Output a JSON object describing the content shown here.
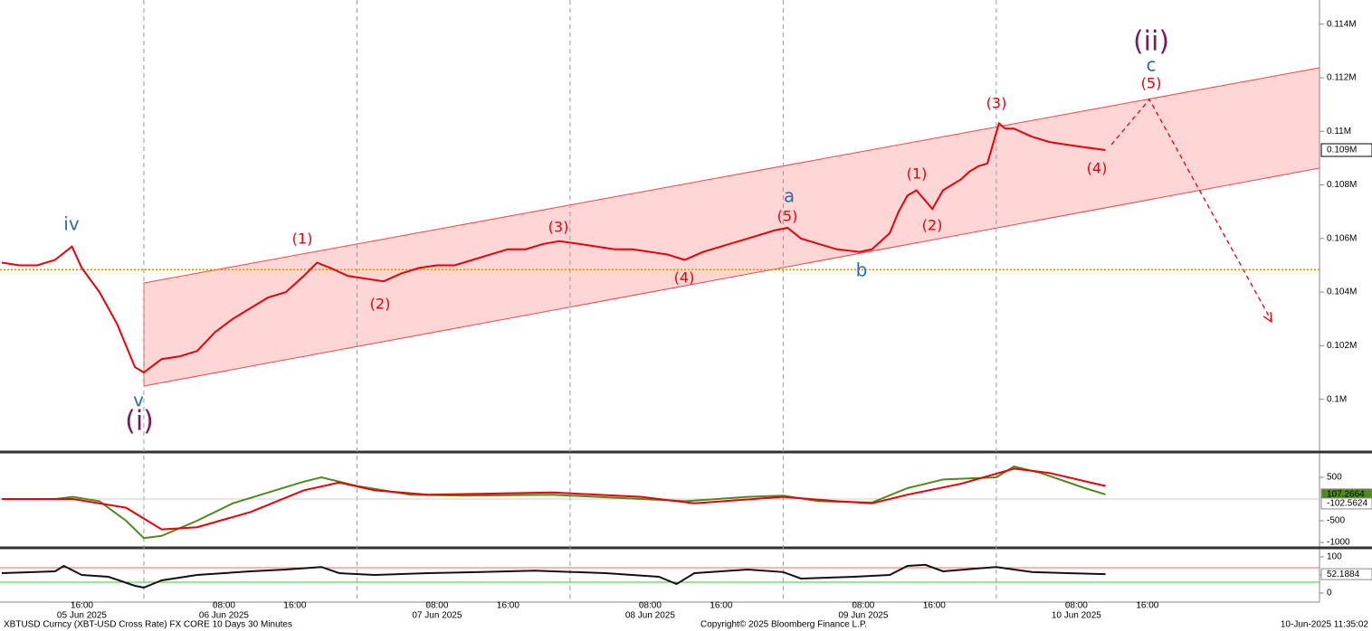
{
  "chart_data": [
    {
      "type": "line",
      "color": "#e8000b",
      "x": [
        8,
        10,
        12,
        14,
        15.9,
        17,
        19,
        21,
        23,
        24,
        26,
        28,
        30,
        32,
        34,
        36,
        38,
        40,
        42,
        43.5,
        45,
        47,
        49,
        51,
        53,
        55,
        57,
        59,
        61,
        63,
        65,
        67,
        69,
        70.8,
        73,
        75,
        77,
        79,
        81,
        83,
        84.9,
        87,
        89,
        91,
        93,
        95,
        96.5,
        98,
        100,
        102,
        104.6,
        106,
        108,
        109,
        110,
        111,
        112.8,
        114,
        115,
        116,
        117,
        118,
        119,
        120.3,
        121,
        122,
        124,
        126,
        128,
        130,
        132.3
      ],
      "values": [
        0.1051,
        0.105,
        0.105,
        0.1052,
        0.1057,
        0.1049,
        0.104,
        0.1028,
        0.1012,
        0.101,
        0.1015,
        0.1016,
        0.1018,
        0.1025,
        0.103,
        0.1034,
        0.1038,
        0.104,
        0.1046,
        0.1051,
        0.1049,
        0.1046,
        0.1045,
        0.1044,
        0.1047,
        0.1049,
        0.105,
        0.105,
        0.1052,
        0.1054,
        0.1056,
        0.1056,
        0.1058,
        0.1059,
        0.1058,
        0.1057,
        0.1056,
        0.1056,
        0.1055,
        0.1054,
        0.1052,
        0.1055,
        0.1057,
        0.1059,
        0.1061,
        0.1063,
        0.1064,
        0.106,
        0.1058,
        0.1056,
        0.1055,
        0.1056,
        0.1062,
        0.107,
        0.1076,
        0.1078,
        0.1071,
        0.1078,
        0.108,
        0.1082,
        0.1085,
        0.1087,
        0.1088,
        0.1103,
        0.1101,
        0.1101,
        0.1098,
        0.1096,
        0.1095,
        0.1094,
        0.1093
      ],
      "xlim": [
        7.8,
        156.4
      ],
      "ylim": [
        0.0981,
        0.1149
      ],
      "yticks": [
        {
          "value": 0.1,
          "label": "0.1M"
        },
        {
          "value": 0.102,
          "label": "0.102M"
        },
        {
          "value": 0.104,
          "label": "0.104M"
        },
        {
          "value": 0.106,
          "label": "0.106M"
        },
        {
          "value": 0.108,
          "label": "0.108M"
        },
        {
          "value": 0.11,
          "label": "0.11M"
        },
        {
          "value": 0.112,
          "label": "0.112M"
        },
        {
          "value": 0.114,
          "label": "0.114M"
        }
      ],
      "xticks": [
        {
          "value": 16,
          "label": "16:00"
        },
        {
          "value": 32,
          "label": "08:00"
        },
        {
          "value": 40,
          "label": "16:00"
        },
        {
          "value": 56,
          "label": "08:00"
        },
        {
          "value": 64,
          "label": "16:00"
        },
        {
          "value": 80,
          "label": "08:00"
        },
        {
          "value": 88,
          "label": "16:00"
        },
        {
          "value": 104,
          "label": "08:00"
        },
        {
          "value": 112,
          "label": "16:00"
        },
        {
          "value": 128,
          "label": "08:00"
        },
        {
          "value": 136,
          "label": "16:00"
        }
      ],
      "date_labels": [
        {
          "value": 16,
          "label": "05 Jun 2025"
        },
        {
          "value": 32,
          "label": "06 Jun 2025"
        },
        {
          "value": 56,
          "label": "07 Jun 2025"
        },
        {
          "value": 80,
          "label": "08 Jun 2025"
        },
        {
          "value": 104,
          "label": "09 Jun 2025"
        },
        {
          "value": 128,
          "label": "10 Jun 2025"
        }
      ],
      "day_lines": [
        24,
        48,
        72,
        96,
        120
      ],
      "reference_line": {
        "value": 0.10484,
        "color": "#f08c00"
      },
      "last_value": {
        "value": 0.1093,
        "label": "0.109M"
      },
      "annotations": [
        {
          "text": "(ii)",
          "color": "#7b1a5a"
        },
        {
          "text": "c",
          "color": "#2e6da4"
        },
        {
          "text": "(5)",
          "color": "#e8000b"
        },
        {
          "text": "(3)",
          "color": "#e8000b"
        },
        {
          "text": "(1)",
          "color": "#e8000b"
        },
        {
          "text": "(2)",
          "color": "#e8000b"
        },
        {
          "text": "(4)",
          "color": "#e8000b"
        },
        {
          "text": "a",
          "color": "#2e6da4"
        },
        {
          "text": "(5)",
          "color": "#e8000b"
        },
        {
          "text": "b",
          "color": "#2e6da4"
        },
        {
          "text": "(3)",
          "color": "#e8000b"
        },
        {
          "text": "(4)",
          "color": "#e8000b"
        },
        {
          "text": "(1)",
          "color": "#e8000b"
        },
        {
          "text": "(2)",
          "color": "#e8000b"
        },
        {
          "text": "iv",
          "color": "#2e6da4"
        },
        {
          "text": "v",
          "color": "#2e6da4"
        },
        {
          "text": "(i)",
          "color": "#7b1a5a"
        }
      ]
    },
    {
      "type": "line",
      "series": [
        {
          "color": "#4f8a1a",
          "x": [
            8,
            14,
            16,
            19,
            22,
            24,
            26,
            30,
            34,
            38,
            42,
            44,
            48,
            54,
            60,
            70,
            80,
            85,
            92,
            96,
            100,
            106,
            110,
            114,
            120,
            122,
            125,
            130,
            132.3
          ],
          "values": [
            0,
            0,
            50,
            -50,
            -500,
            -900,
            -850,
            -500,
            -100,
            150,
            400,
            500,
            300,
            100,
            80,
            100,
            0,
            -50,
            50,
            80,
            -50,
            -80,
            250,
            450,
            500,
            750,
            600,
            250,
            107.2664
          ]
        },
        {
          "color": "#e8000b",
          "x": [
            8,
            16,
            22,
            26,
            30,
            36,
            42,
            46,
            50,
            56,
            70,
            80,
            86,
            96,
            102,
            106,
            110,
            116,
            122,
            126,
            132.3
          ],
          "values": [
            0,
            0,
            -200,
            -700,
            -650,
            -300,
            200,
            380,
            200,
            100,
            150,
            50,
            -100,
            50,
            -50,
            -100,
            100,
            350,
            700,
            600,
            300
          ]
        }
      ],
      "ylim": [
        -1083,
        1042
      ],
      "yticks": [
        500,
        -500,
        -1000
      ],
      "last_values": [
        {
          "value": 107.2664,
          "color": "#4f8a1a"
        },
        {
          "value": -102.5624,
          "color": "#ffffff"
        }
      ]
    },
    {
      "type": "line",
      "series": [
        {
          "color": "#111111",
          "x": [
            8,
            14,
            15,
            17,
            20,
            23,
            24,
            26,
            30,
            36,
            40,
            44,
            46,
            50,
            56,
            62,
            68,
            76,
            82,
            84,
            86,
            92,
            96,
            98,
            104,
            108,
            110,
            112,
            114,
            118,
            120,
            124,
            128,
            132.3
          ],
          "values": [
            55,
            60,
            75,
            50,
            45,
            20,
            15,
            35,
            50,
            60,
            65,
            72,
            55,
            50,
            55,
            58,
            62,
            55,
            45,
            25,
            55,
            65,
            58,
            40,
            45,
            50,
            75,
            78,
            60,
            68,
            72,
            58,
            55,
            52.1884
          ]
        }
      ],
      "ylim": [
        -25,
        120
      ],
      "yticks": [
        100,
        50,
        0
      ],
      "ref_lines": [
        {
          "value": 70,
          "color": "#ff6666"
        },
        {
          "value": 30,
          "color": "#33cc33"
        }
      ],
      "last_values": [
        {
          "value": 52.1884,
          "color": "#ffffff"
        }
      ]
    }
  ],
  "footer": {
    "left": "XBTUSD Curncy (XBT-USD Cross Rate) FX CORE 10 Days 30 Minutes",
    "center": "Copyright© 2025 Bloomberg Finance L.P.",
    "right": "10-Jun-2025 11:35:02"
  }
}
